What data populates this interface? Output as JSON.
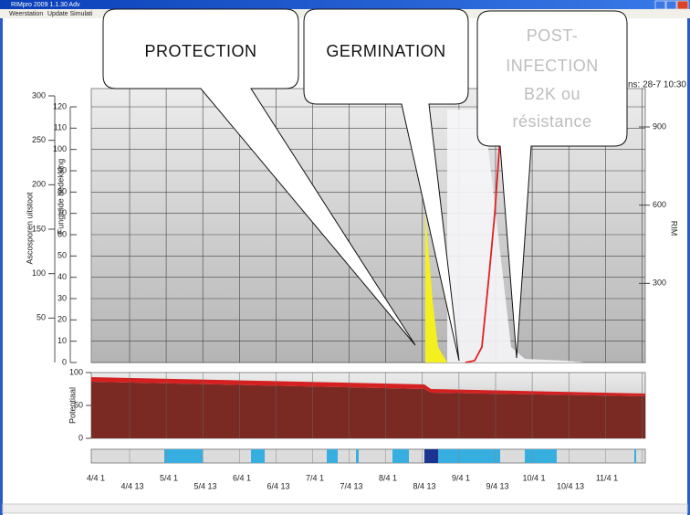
{
  "window": {
    "title": "RIMpro 2009 1.1.30 Adv",
    "menu": [
      "Weerstation",
      "Update Simulati"
    ]
  },
  "callouts": [
    {
      "lines": [
        "PROTECTION"
      ]
    },
    {
      "lines": [
        "GERMINATION"
      ]
    },
    {
      "lines": [
        "POST-",
        "INFECTION",
        "B2K ou",
        "résistance"
      ]
    }
  ],
  "chart": {
    "timestamp": "ns: 28-7 10:30",
    "ascospore_axis": {
      "label": "Ascosporen uitstoot",
      "ylim": [
        0,
        300
      ],
      "ticks": [
        50,
        100,
        150,
        200,
        250,
        300
      ]
    },
    "fungicide_axis": {
      "label": "Fungicide bedekking",
      "ylim": [
        0,
        120
      ],
      "ticks": [
        0,
        10,
        20,
        30,
        40,
        50,
        60,
        70,
        80,
        90,
        100,
        110,
        120
      ]
    },
    "rim_axis": {
      "label": "RIM",
      "ylim": [
        0,
        900
      ],
      "ticks": [
        300,
        600,
        900
      ]
    },
    "potential_axis": {
      "label": "Potentiaal",
      "ylim": [
        0,
        100
      ],
      "ticks": [
        0,
        50,
        100
      ]
    },
    "dates": [
      "4/4 1",
      "4/4 13",
      "5/4 1",
      "5/4 13",
      "6/4 1",
      "6/4 13",
      "7/4 1",
      "7/4 13",
      "8/4 1",
      "8/4 13",
      "9/4 1",
      "9/4 13",
      "10/4 1",
      "10/4 13",
      "11/4 1"
    ]
  }
}
